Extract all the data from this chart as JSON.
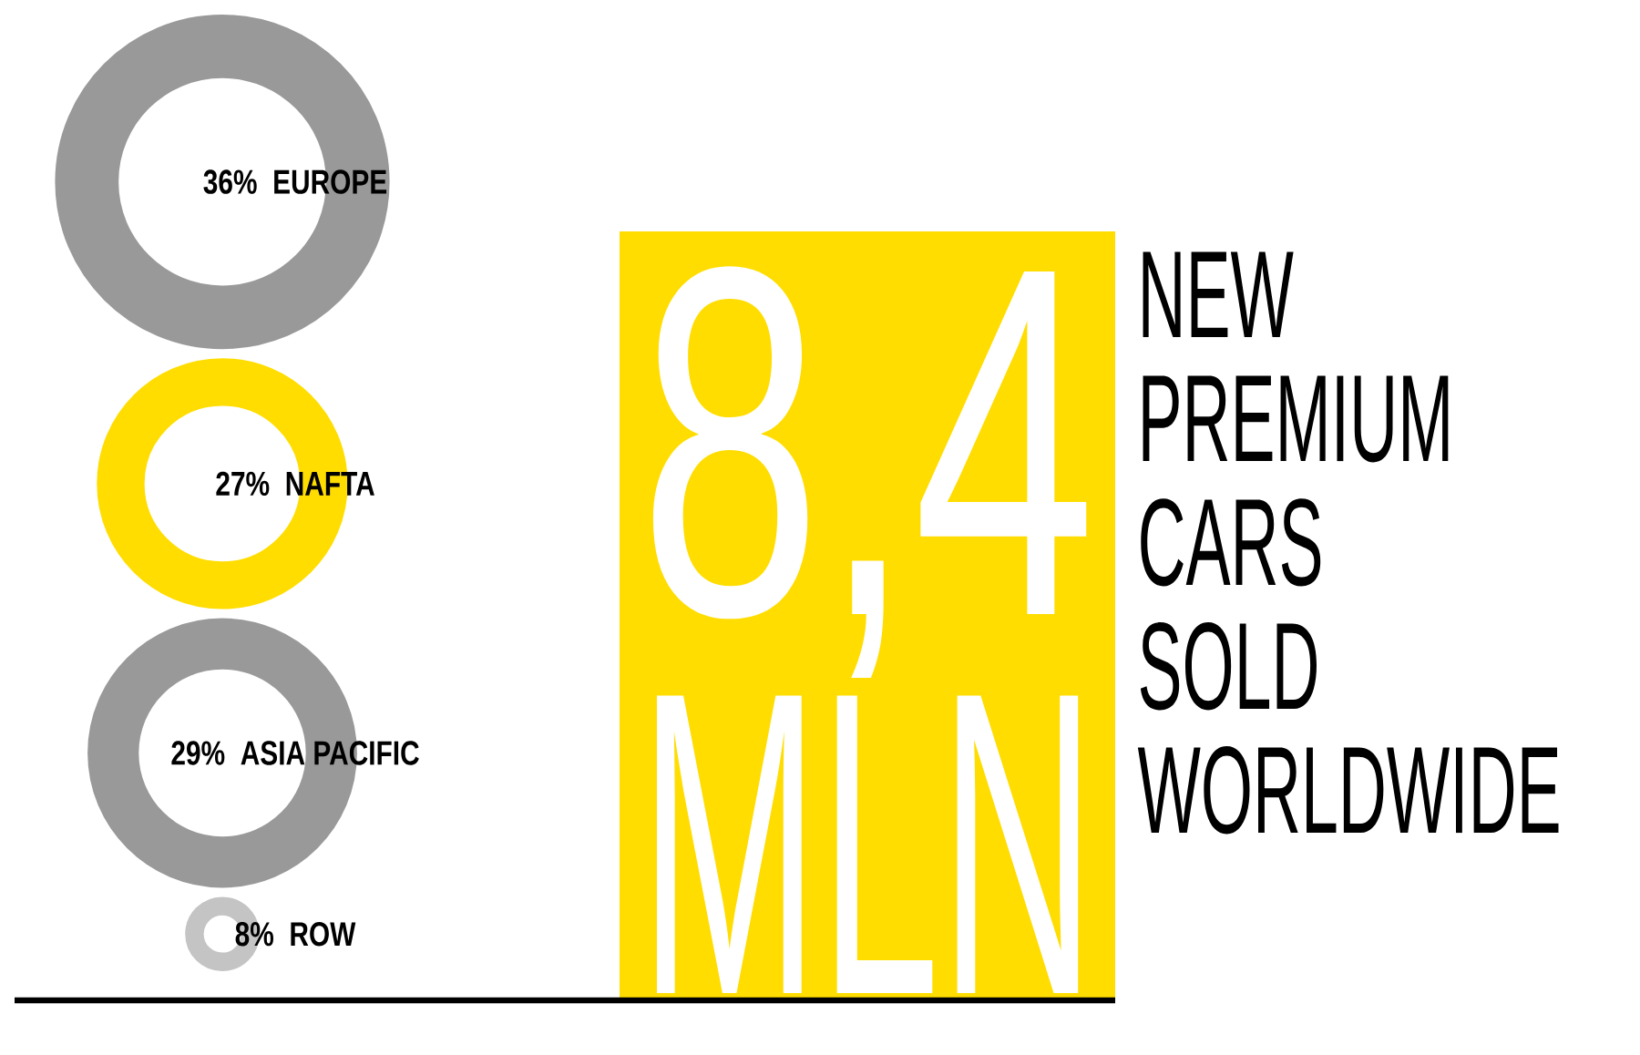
{
  "chart_data": {
    "type": "other",
    "title": "NEW PREMIUM CARS SOLD WORLDWIDE",
    "annotations": [
      "8,4",
      "MLN"
    ],
    "categories": [
      "EUROPE",
      "NAFTA",
      "ASIA PACIFIC",
      "ROW"
    ],
    "values": [
      36,
      27,
      29,
      8
    ],
    "value_labels": [
      "36%",
      "27%",
      "29%",
      "8%"
    ],
    "colors": [
      "#999999",
      "#ffdd00",
      "#999999",
      "#c4c4c4"
    ]
  }
}
